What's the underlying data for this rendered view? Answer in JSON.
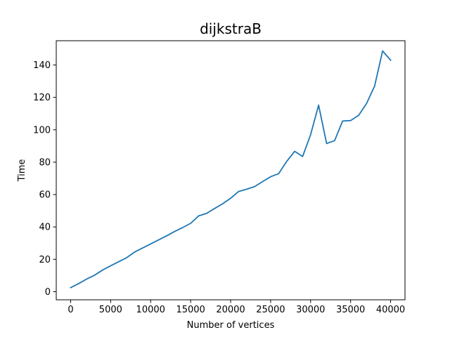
{
  "chart_data": {
    "type": "line",
    "title": "dijkstraB",
    "xlabel": "Number of vertices",
    "ylabel": "Time",
    "xlim": [
      -1800,
      41800
    ],
    "ylim": [
      -5,
      155
    ],
    "x_ticks": [
      0,
      5000,
      10000,
      15000,
      20000,
      25000,
      30000,
      35000,
      40000
    ],
    "x_tick_labels": [
      "0",
      "5000",
      "10000",
      "15000",
      "20000",
      "25000",
      "30000",
      "35000",
      "40000"
    ],
    "y_ticks": [
      0,
      20,
      40,
      60,
      80,
      100,
      120,
      140
    ],
    "y_tick_labels": [
      "0",
      "20",
      "40",
      "60",
      "80",
      "100",
      "120",
      "140"
    ],
    "grid": false,
    "legend": false,
    "series": [
      {
        "color": "#1f77b4",
        "x": [
          0,
          1000,
          2000,
          3000,
          4000,
          5000,
          6000,
          7000,
          8000,
          9000,
          10000,
          11000,
          12000,
          13000,
          14000,
          15000,
          16000,
          17000,
          18000,
          19000,
          20000,
          21000,
          22000,
          23000,
          24000,
          25000,
          26000,
          27000,
          28000,
          29000,
          30000,
          31000,
          32000,
          33000,
          34000,
          35000,
          36000,
          37000,
          38000,
          39000,
          40000
        ],
        "y": [
          2.5,
          5.0,
          7.8,
          10.2,
          13.4,
          16.0,
          18.5,
          21.0,
          24.5,
          27.0,
          29.5,
          32.0,
          34.5,
          37.2,
          39.6,
          42.2,
          46.8,
          48.4,
          51.4,
          54.3,
          57.7,
          61.9,
          63.3,
          64.9,
          68.0,
          71.0,
          72.9,
          80.4,
          86.7,
          83.5,
          97.0,
          115.2,
          91.5,
          93.3,
          105.4,
          105.7,
          108.9,
          116.3,
          127.0,
          148.7,
          143.0
        ]
      }
    ]
  }
}
